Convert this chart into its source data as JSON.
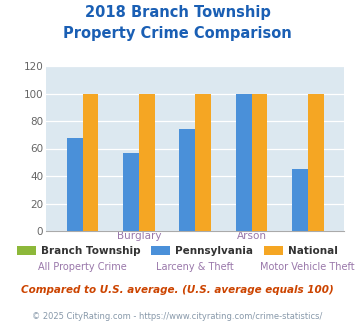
{
  "title_line1": "2018 Branch Township",
  "title_line2": "Property Crime Comparison",
  "title_color": "#1a5fb4",
  "groups": [
    "All Property Crime",
    "Burglary",
    "Larceny & Theft",
    "Arson",
    "Motor Vehicle Theft"
  ],
  "x_top_labels": [
    "",
    "Burglary",
    "",
    "Arson",
    ""
  ],
  "x_bottom_labels": [
    "All Property Crime",
    "",
    "Larceny & Theft",
    "",
    "Motor Vehicle Theft"
  ],
  "pennsylvania": [
    68,
    57,
    74,
    100,
    45
  ],
  "national": [
    100,
    100,
    100,
    100,
    100
  ],
  "branch_color": "#8db83a",
  "pennsylvania_color": "#4a90d9",
  "national_color": "#f5a623",
  "ylim": [
    0,
    120
  ],
  "yticks": [
    0,
    20,
    40,
    60,
    80,
    100,
    120
  ],
  "bg_color": "#dce8f0",
  "legend_labels": [
    "Branch Township",
    "Pennsylvania",
    "National"
  ],
  "footnote1": "Compared to U.S. average. (U.S. average equals 100)",
  "footnote2": "© 2025 CityRating.com - https://www.cityrating.com/crime-statistics/",
  "footnote1_color": "#cc4400",
  "footnote2_color": "#8899aa",
  "footnote2_link_color": "#4488cc"
}
